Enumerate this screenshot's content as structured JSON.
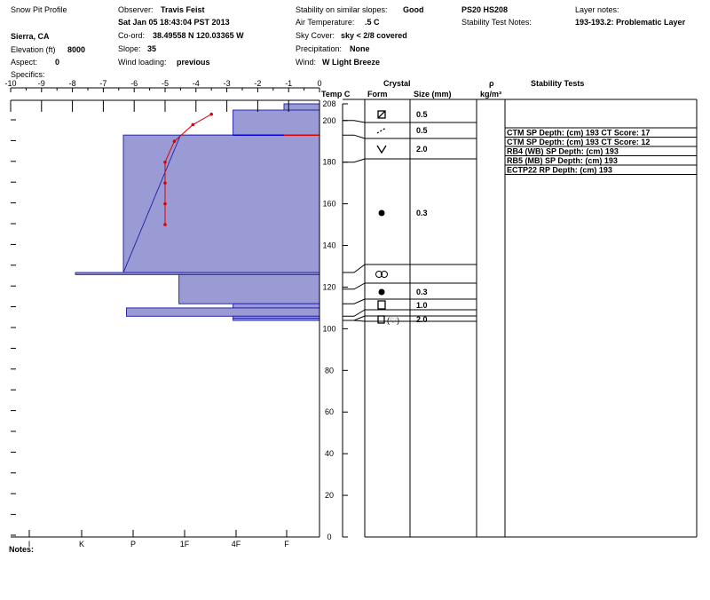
{
  "header": {
    "profile_title": "Snow Pit Profile",
    "location": "Sierra, CA",
    "elevation_label": "Elevation (ft)",
    "elevation_value": "8000",
    "aspect_label": "Aspect:",
    "aspect_value": "0",
    "specifics_label": "Specifics:",
    "observer_label": "Observer:",
    "observer_value": "Travis Feist",
    "datetime": "Sat Jan 05 18:43:04 PST 2013",
    "coord_label": "Co-ord:",
    "coord_value": "38.49558 N 120.03365 W",
    "slope_label": "Slope:",
    "slope_value": "35",
    "wind_loading_label": "Wind loading:",
    "wind_loading_value": "previous",
    "stability_similar_label": "Stability on similar slopes:",
    "stability_similar_value": "Good",
    "air_temp_label": "Air Temperature:",
    "air_temp_value": ".5 C",
    "sky_label": "Sky Cover:",
    "sky_value": "sky < 2/8 covered",
    "precip_label": "Precipitation:",
    "precip_value": "None",
    "wind_label": "Wind:",
    "wind_value": "W Light Breeze",
    "ps_hs": "PS20 HS208",
    "stability_test_notes_label": "Stability Test Notes:",
    "layer_notes_label": "Layer notes:",
    "layer_notes_value": "193-193.2: Problematic Layer"
  },
  "columns": {
    "temp": "Temp C",
    "crystal": "Crystal",
    "form": "Form",
    "size": "Size (mm)",
    "rho": "ρ",
    "density_unit": "kg/m³",
    "stability_tests": "Stability Tests"
  },
  "notes_label": "Notes:",
  "colors": {
    "hardness_fill": "#9a9ad4",
    "hardness_line": "#2a2aaa",
    "temp_line": "#e00000",
    "temp_line_crossing": "#0000dd",
    "axis": "#000000"
  },
  "chart_data": {
    "type": "area",
    "temp_axis": {
      "ticks": [
        "-10",
        "-9",
        "-8",
        "-7",
        "-6",
        "-5",
        "-4",
        "-3",
        "-2",
        "-1",
        "0"
      ],
      "range": [
        -10,
        0
      ]
    },
    "depth_axis": {
      "ticks": [
        "0",
        "20",
        "40",
        "60",
        "80",
        "100",
        "120",
        "140",
        "160",
        "180",
        "200",
        "208"
      ],
      "range": [
        0,
        208
      ]
    },
    "hardness_axis": {
      "ticks": [
        "I",
        "K",
        "P",
        "1F",
        "4F",
        "F"
      ]
    },
    "hardness_profile": [
      {
        "top": 208,
        "bottom": 205,
        "temp_value": -1.15
      },
      {
        "top": 205,
        "bottom": 193,
        "temp_value": -2.8
      },
      {
        "top": 193,
        "bottom": 127,
        "temp_value": -6.35
      },
      {
        "top": 127,
        "bottom": 126,
        "temp_value": -7.9
      },
      {
        "top": 126,
        "bottom": 112,
        "temp_value": -4.55
      },
      {
        "top": 112,
        "bottom": 110,
        "temp_value": -2.8
      },
      {
        "top": 110,
        "bottom": 106,
        "temp_value": -6.25
      },
      {
        "top": 106,
        "bottom": 105,
        "temp_value": -2.8
      },
      {
        "top": 105,
        "bottom": 104,
        "temp_value": -2.8
      }
    ],
    "temperature_profile": [
      {
        "depth": 203,
        "temp": -3.5
      },
      {
        "depth": 198,
        "temp": -4.1
      },
      {
        "depth": 190,
        "temp": -4.7
      },
      {
        "depth": 180,
        "temp": -5.0
      },
      {
        "depth": 170,
        "temp": -5.0
      },
      {
        "depth": 160,
        "temp": -5.0
      },
      {
        "depth": 150,
        "temp": -5.0
      }
    ],
    "problem_layer_depth": 193
  },
  "layers": [
    {
      "top": 208,
      "bottom": 200,
      "form": "faceted",
      "size": "0.5"
    },
    {
      "top": 200,
      "bottom": 193,
      "form": "decomposing",
      "size": "0.5"
    },
    {
      "top": 193,
      "bottom": 180,
      "form": "depth-hoar",
      "size": "2.0"
    },
    {
      "top": 180,
      "bottom": 127,
      "form": "rounded",
      "size": "0.3"
    },
    {
      "top": 127,
      "bottom": 119,
      "form": "melt-form",
      "size": ""
    },
    {
      "top": 119,
      "bottom": 112,
      "form": "rounded",
      "size": "0.3"
    },
    {
      "top": 112,
      "bottom": 106,
      "form": "faceted-square",
      "size": "1.0"
    },
    {
      "top": 106,
      "bottom": 104,
      "form": "mixed",
      "size": "2.0"
    }
  ],
  "stability_tests": [
    "CTM SP Depth: (cm) 193 CT Score: 17",
    "CTM SP Depth: (cm) 193 CT Score: 12",
    "RB4 (WB) SP Depth: (cm) 193",
    "RB5 (MB) SP Depth: (cm) 193",
    "ECTP22 RP Depth: (cm) 193"
  ]
}
